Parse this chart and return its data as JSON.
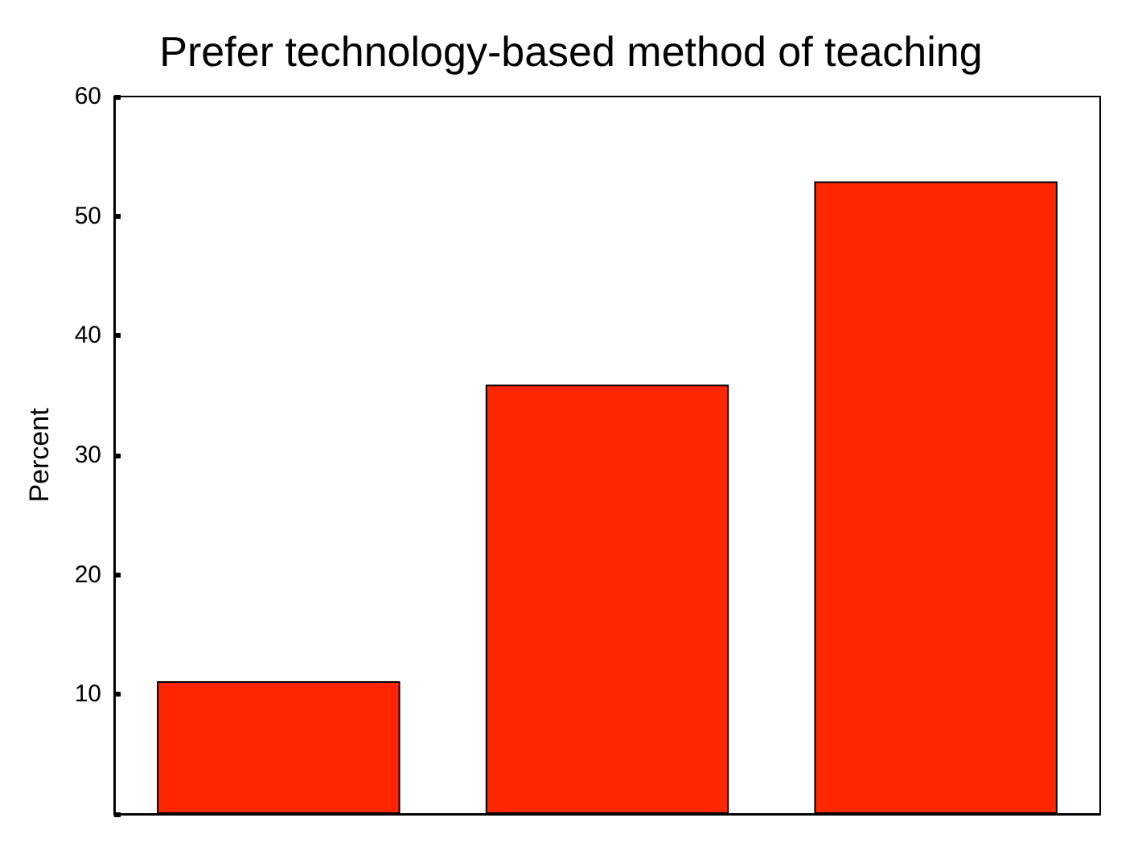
{
  "chart_data": {
    "type": "bar",
    "title": "Prefer technology-based method of teaching",
    "ylabel": "Percent",
    "categories": [
      null,
      null,
      null
    ],
    "values": [
      11.1,
      35.9,
      52.9
    ],
    "color": "#ff2600",
    "ylim": [
      0,
      60
    ],
    "yticks": [
      {
        "value": 0,
        "label": null
      },
      10,
      20,
      30,
      40,
      50,
      60
    ]
  }
}
